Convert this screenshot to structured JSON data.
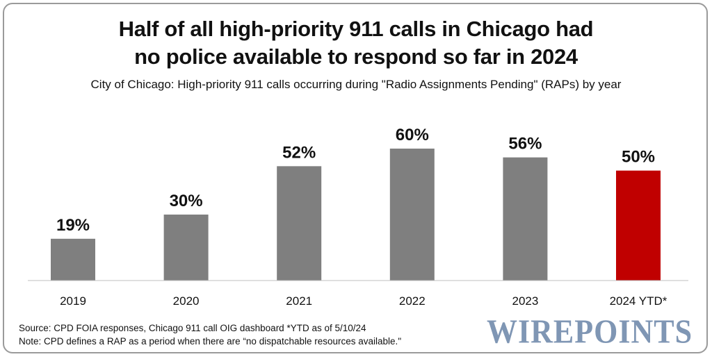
{
  "chart_data": {
    "type": "bar",
    "title": "Half of all high-priority 911 calls in Chicago had no police available to respond so far in 2024",
    "title_lines": [
      "Half of all high-priority 911 calls in Chicago had",
      "no police available to respond so far in 2024"
    ],
    "subtitle": "City of Chicago: High-priority 911 calls occurring during \"Radio Assignments Pending\" (RAPs) by year",
    "categories": [
      "2019",
      "2020",
      "2021",
      "2022",
      "2023",
      "2024 YTD*"
    ],
    "values": [
      19,
      30,
      52,
      60,
      56,
      50
    ],
    "data_labels": [
      "19%",
      "30%",
      "52%",
      "60%",
      "56%",
      "50%"
    ],
    "unit": "%",
    "colors": [
      "#7f7f7f",
      "#7f7f7f",
      "#7f7f7f",
      "#7f7f7f",
      "#7f7f7f",
      "#c00000"
    ],
    "xlabel": "",
    "ylabel": "",
    "ylim": [
      0,
      65
    ],
    "grid": false,
    "y_axis_shown": false
  },
  "footer": {
    "source": "Source: CPD FOIA responses, Chicago 911 call OIG dashboard  *YTD as of  5/10/24",
    "note": "Note: CPD defines a RAP as a period when there are “no dispatchable resources available.\"",
    "logo": "WIREPOINTS"
  }
}
